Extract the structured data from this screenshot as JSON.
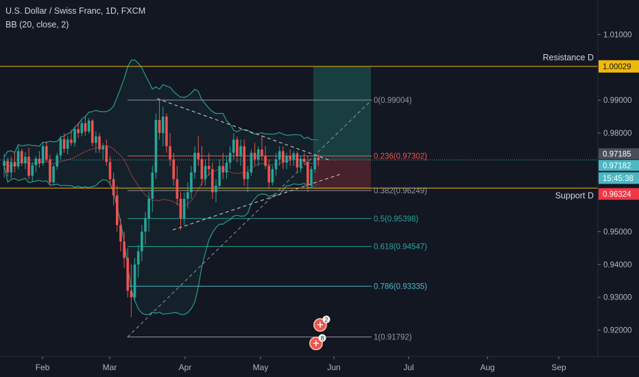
{
  "header": {
    "title": "U.S. Dollar / Swiss Franc, 1D, FXCM",
    "indicator": "BB (20, close, 2)"
  },
  "colors": {
    "background": "#131722",
    "up": "#26a69a",
    "down": "#ef5350",
    "level_line": "#f0b90b",
    "price_line": "#4bb8c4",
    "red_badge": "#f23645",
    "bb_band": "#2a9d8f",
    "long_target": "#1f5f5a",
    "long_stop": "#5a2530"
  },
  "chart_data": {
    "type": "candlestick",
    "symbol": "U.S. Dollar / Swiss Franc",
    "interval": "1D",
    "source": "FXCM",
    "ylim": [
      0.912,
      1.0205
    ],
    "x_ticks": [
      "Feb",
      "Mar",
      "Apr",
      "May",
      "Jun",
      "Jul",
      "Aug",
      "Sep"
    ],
    "y_ticks": [
      "1.01000",
      "0.99000",
      "0.98000",
      "0.95000",
      "0.94000",
      "0.93000",
      "0.92000"
    ],
    "last_price": 0.97182,
    "last_close_label": "0.97185",
    "countdown": "15:45:38",
    "horizontal_levels": [
      {
        "name": "Resistance D",
        "value": 1.00029,
        "badge": "1.00029"
      },
      {
        "name": "Support D",
        "value": 0.96324,
        "badge": "0.96324"
      }
    ],
    "fibonacci": {
      "levels": [
        {
          "ratio": "0",
          "value": 0.99004,
          "label": "0(0.99004)",
          "color": "#9598a1"
        },
        {
          "ratio": "0.236",
          "value": 0.97302,
          "label": "0.236(0.97302)",
          "color": "#ef5350"
        },
        {
          "ratio": "0.382",
          "value": 0.96249,
          "label": "0.382(0.96249)",
          "color": "#9598a1"
        },
        {
          "ratio": "0.5",
          "value": 0.95398,
          "label": "0.5(0.95398)",
          "color": "#26a69a"
        },
        {
          "ratio": "0.618",
          "value": 0.94547,
          "label": "0.618(0.94547)",
          "color": "#26a69a"
        },
        {
          "ratio": "0.786",
          "value": 0.93335,
          "label": "0.786(0.93335)",
          "color": "#4bb8c4"
        },
        {
          "ratio": "1",
          "value": 0.91792,
          "label": "1(0.91792)",
          "color": "#9598a1"
        }
      ]
    },
    "position": {
      "type": "long",
      "entry": 0.97185,
      "target": 1.00029,
      "stop": 0.9628
    },
    "events": [
      {
        "count": "2"
      },
      {
        "count": "8"
      }
    ],
    "candles": [
      [
        0.97,
        0.9735,
        0.9665,
        0.9715
      ],
      [
        0.9715,
        0.9725,
        0.9668,
        0.968
      ],
      [
        0.968,
        0.9728,
        0.9662,
        0.9712
      ],
      [
        0.9712,
        0.974,
        0.968,
        0.9698
      ],
      [
        0.9698,
        0.976,
        0.969,
        0.9745
      ],
      [
        0.9745,
        0.9752,
        0.97,
        0.9708
      ],
      [
        0.9708,
        0.9742,
        0.969,
        0.9728
      ],
      [
        0.9728,
        0.9755,
        0.966,
        0.967
      ],
      [
        0.967,
        0.9712,
        0.965,
        0.9702
      ],
      [
        0.9702,
        0.973,
        0.968,
        0.9722
      ],
      [
        0.9722,
        0.9745,
        0.9695,
        0.9708
      ],
      [
        0.9708,
        0.977,
        0.97,
        0.976
      ],
      [
        0.976,
        0.9775,
        0.9712,
        0.972
      ],
      [
        0.972,
        0.9735,
        0.964,
        0.965
      ],
      [
        0.965,
        0.9705,
        0.964,
        0.9698
      ],
      [
        0.9698,
        0.974,
        0.9688,
        0.9732
      ],
      [
        0.9732,
        0.9792,
        0.972,
        0.9782
      ],
      [
        0.9782,
        0.98,
        0.974,
        0.9752
      ],
      [
        0.9752,
        0.979,
        0.9735,
        0.978
      ],
      [
        0.978,
        0.981,
        0.976,
        0.977
      ],
      [
        0.977,
        0.982,
        0.9758,
        0.9812
      ],
      [
        0.9812,
        0.9832,
        0.9785,
        0.98
      ],
      [
        0.98,
        0.9838,
        0.979,
        0.983
      ],
      [
        0.983,
        0.985,
        0.9792,
        0.9805
      ],
      [
        0.9805,
        0.9845,
        0.9798,
        0.9838
      ],
      [
        0.9838,
        0.9842,
        0.976,
        0.977
      ],
      [
        0.977,
        0.9805,
        0.974,
        0.979
      ],
      [
        0.979,
        0.98,
        0.974,
        0.975
      ],
      [
        0.975,
        0.977,
        0.972,
        0.976
      ],
      [
        0.976,
        0.978,
        0.97,
        0.9712
      ],
      [
        0.9712,
        0.973,
        0.964,
        0.966
      ],
      [
        0.966,
        0.968,
        0.958,
        0.961
      ],
      [
        0.961,
        0.964,
        0.95,
        0.952
      ],
      [
        0.952,
        0.954,
        0.944,
        0.947
      ],
      [
        0.947,
        0.95,
        0.939,
        0.942
      ],
      [
        0.942,
        0.945,
        0.93,
        0.932
      ],
      [
        0.932,
        0.94,
        0.924,
        0.93
      ],
      [
        0.93,
        0.942,
        0.929,
        0.94
      ],
      [
        0.94,
        0.946,
        0.936,
        0.944
      ],
      [
        0.944,
        0.952,
        0.941,
        0.95
      ],
      [
        0.95,
        0.956,
        0.946,
        0.954
      ],
      [
        0.954,
        0.962,
        0.95,
        0.96
      ],
      [
        0.96,
        0.97,
        0.956,
        0.968
      ],
      [
        0.968,
        0.986,
        0.966,
        0.984
      ],
      [
        0.984,
        0.99,
        0.978,
        0.98
      ],
      [
        0.98,
        0.988,
        0.976,
        0.985
      ],
      [
        0.985,
        0.986,
        0.974,
        0.976
      ],
      [
        0.976,
        0.98,
        0.97,
        0.972
      ],
      [
        0.972,
        0.974,
        0.964,
        0.966
      ],
      [
        0.966,
        0.97,
        0.958,
        0.96
      ],
      [
        0.96,
        0.962,
        0.9505,
        0.954
      ],
      [
        0.954,
        0.962,
        0.952,
        0.96
      ],
      [
        0.96,
        0.965,
        0.957,
        0.962
      ],
      [
        0.962,
        0.97,
        0.96,
        0.968
      ],
      [
        0.968,
        0.976,
        0.966,
        0.974
      ],
      [
        0.974,
        0.979,
        0.97,
        0.972
      ],
      [
        0.972,
        0.976,
        0.964,
        0.966
      ],
      [
        0.966,
        0.972,
        0.964,
        0.97
      ],
      [
        0.97,
        0.974,
        0.967,
        0.969
      ],
      [
        0.969,
        0.971,
        0.96,
        0.962
      ],
      [
        0.962,
        0.966,
        0.959,
        0.964
      ],
      [
        0.964,
        0.972,
        0.963,
        0.97
      ],
      [
        0.97,
        0.974,
        0.966,
        0.968
      ],
      [
        0.968,
        0.973,
        0.966,
        0.971
      ],
      [
        0.971,
        0.976,
        0.969,
        0.974
      ],
      [
        0.974,
        0.98,
        0.972,
        0.978
      ],
      [
        0.978,
        0.979,
        0.971,
        0.973
      ],
      [
        0.973,
        0.978,
        0.97,
        0.976
      ],
      [
        0.976,
        0.978,
        0.964,
        0.966
      ],
      [
        0.966,
        0.97,
        0.962,
        0.968
      ],
      [
        0.968,
        0.975,
        0.967,
        0.974
      ],
      [
        0.974,
        0.977,
        0.97,
        0.972
      ],
      [
        0.972,
        0.976,
        0.97,
        0.975
      ],
      [
        0.975,
        0.979,
        0.972,
        0.973
      ],
      [
        0.973,
        0.976,
        0.969,
        0.97
      ],
      [
        0.97,
        0.972,
        0.963,
        0.965
      ],
      [
        0.965,
        0.97,
        0.964,
        0.969
      ],
      [
        0.969,
        0.974,
        0.967,
        0.972
      ],
      [
        0.972,
        0.976,
        0.97,
        0.9745
      ],
      [
        0.9745,
        0.976,
        0.969,
        0.971
      ],
      [
        0.971,
        0.974,
        0.969,
        0.973
      ],
      [
        0.973,
        0.975,
        0.97,
        0.972
      ],
      [
        0.972,
        0.9745,
        0.97,
        0.9738
      ],
      [
        0.9738,
        0.9745,
        0.968,
        0.9695
      ],
      [
        0.9695,
        0.973,
        0.968,
        0.9722
      ],
      [
        0.9722,
        0.974,
        0.9705,
        0.9712
      ],
      [
        0.9712,
        0.973,
        0.962,
        0.964
      ],
      [
        0.964,
        0.97,
        0.963,
        0.969
      ],
      [
        0.969,
        0.9735,
        0.968,
        0.9725
      ],
      [
        0.9725,
        0.9735,
        0.97,
        0.9718
      ]
    ]
  }
}
